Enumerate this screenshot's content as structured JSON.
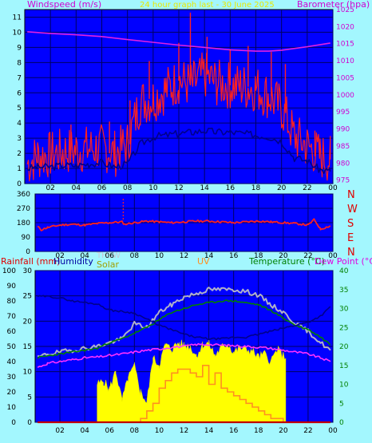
{
  "header": {
    "title": "24 hour graph last - 30 June 2025",
    "windspeed_label": "Windspeed (m/s)",
    "barometer_label": "Barometer (hpa)"
  },
  "x_ticks": [
    "02",
    "04",
    "06",
    "08",
    "10",
    "12",
    "14",
    "16",
    "18",
    "20",
    "22",
    "00"
  ],
  "panels": {
    "wind": {
      "left_ticks": [
        "0",
        "1",
        "2",
        "3",
        "4",
        "5",
        "6",
        "7",
        "8",
        "9",
        "10",
        "11"
      ],
      "right_ticks": [
        "975",
        "980",
        "985",
        "990",
        "995",
        "1000",
        "1005",
        "1010",
        "1015",
        "1020",
        "1025"
      ]
    },
    "direction": {
      "left_ticks": [
        "0",
        "90",
        "180",
        "270",
        "360"
      ],
      "compass": [
        "N",
        "W",
        "S",
        "E",
        "N"
      ]
    },
    "weather": {
      "rain_label": "Rainfall (mm)",
      "humidity_label": "Humidity",
      "thsw_label": "THSW",
      "solar_label": "Solar",
      "uv_label": "UV",
      "temperature_label": "Temperature (°C)",
      "dewpoint_label": "Dew Point (°C)",
      "humidity_ticks": [
        "0",
        "10",
        "20",
        "30",
        "40",
        "50",
        "60",
        "70",
        "80",
        "90",
        "100"
      ],
      "rain_ticks": [
        "0",
        "5",
        "10",
        "15",
        "20",
        "25",
        "30"
      ],
      "temp_ticks": [
        "0",
        "5",
        "10",
        "15",
        "20",
        "25",
        "30",
        "35",
        "40"
      ]
    }
  },
  "chart_data": [
    {
      "type": "line",
      "title": "24 hour graph last - 30 June 2025",
      "x_range_hours": [
        0,
        24
      ],
      "x_tick_labels": [
        "02",
        "04",
        "06",
        "08",
        "10",
        "12",
        "14",
        "16",
        "18",
        "20",
        "22",
        "00"
      ],
      "left_axis": {
        "label": "Windspeed (m/s)",
        "range": [
          0,
          11.5
        ]
      },
      "right_axis": {
        "label": "Barometer (hpa)",
        "range": [
          974,
          1025
        ]
      },
      "series": [
        {
          "name": "Windspeed (m/s)",
          "axis": "left",
          "color": "#ff2020",
          "x": [
            0.2,
            1,
            2,
            3,
            4,
            5,
            6,
            7,
            8,
            9,
            10,
            11,
            12,
            13,
            14,
            15,
            16,
            17,
            18,
            19,
            20,
            21,
            22,
            23,
            23.8
          ],
          "values": [
            1.3,
            1.8,
            1.9,
            2.1,
            2.2,
            2.3,
            2.4,
            2.0,
            2.6,
            5.4,
            5.6,
            6.2,
            6.8,
            6.5,
            7.2,
            6.6,
            6.5,
            6.4,
            6.3,
            5.8,
            5.0,
            3.1,
            2.5,
            1.8,
            1.6
          ]
        },
        {
          "name": "Gust peaks (m/s)",
          "axis": "left",
          "color": "#ff2020",
          "x": [
            3.6,
            6.6,
            8.2,
            9.7,
            12.0,
            12.9,
            14.2,
            16.0,
            17.4,
            19.2,
            20.3,
            22.6
          ],
          "values": [
            3.9,
            4.1,
            5.5,
            8.1,
            9.3,
            11.3,
            9.7,
            8.9,
            9.1,
            8.7,
            7.9,
            3.5
          ]
        },
        {
          "name": "Average windspeed (m/s)",
          "axis": "left",
          "color": "#00008b",
          "x": [
            0.2,
            1,
            2,
            3,
            4,
            5,
            6,
            7,
            8,
            9,
            10,
            11,
            12,
            13,
            14,
            15,
            16,
            17,
            18,
            19,
            20,
            21,
            22,
            23,
            23.8
          ],
          "values": [
            1.0,
            1.1,
            1.1,
            1.2,
            1.2,
            1.3,
            1.4,
            1.1,
            1.3,
            2.6,
            3.1,
            3.2,
            3.3,
            3.4,
            3.5,
            3.4,
            3.4,
            3.3,
            3.2,
            3.1,
            2.8,
            1.7,
            1.5,
            0.9,
            0.8
          ]
        },
        {
          "name": "Barometer (hpa)",
          "axis": "right",
          "color": "#e020e0",
          "x": [
            0.2,
            2,
            4,
            6,
            8,
            10,
            12,
            14,
            16,
            18,
            19,
            20,
            22,
            23.8
          ],
          "values": [
            1018.5,
            1018.0,
            1017.6,
            1017.1,
            1016.2,
            1015.4,
            1014.6,
            1013.9,
            1013.2,
            1012.8,
            1012.8,
            1013.1,
            1014.1,
            1015.2
          ]
        }
      ]
    },
    {
      "type": "line",
      "title": "",
      "x_range_hours": [
        0,
        24
      ],
      "left_axis": {
        "label": "",
        "range": [
          0,
          360
        ]
      },
      "right_axis": {
        "label": "",
        "ticks": [
          "N",
          "W",
          "S",
          "E",
          "N"
        ]
      },
      "series": [
        {
          "name": "Wind direction (degrees)",
          "axis": "left",
          "color": "#ff2020",
          "x": [
            0.2,
            0.5,
            1,
            2,
            3,
            4,
            5,
            6,
            7,
            7.2,
            8,
            9,
            10,
            11,
            12,
            13,
            14,
            15,
            16,
            17,
            18,
            19,
            20,
            21,
            22,
            22.5,
            23,
            23.8
          ],
          "values": [
            155,
            135,
            150,
            165,
            170,
            165,
            175,
            180,
            185,
            170,
            180,
            190,
            185,
            180,
            185,
            190,
            190,
            185,
            180,
            185,
            190,
            185,
            180,
            175,
            165,
            200,
            140,
            160
          ]
        },
        {
          "name": "Direction marker",
          "axis": "left",
          "color": "#ff2020",
          "x": [
            7.1,
            7.1
          ],
          "values": [
            190,
            330
          ]
        }
      ]
    },
    {
      "type": "line",
      "title": "",
      "x_range_hours": [
        0,
        24
      ],
      "axes": {
        "humidity": {
          "label": "Humidity",
          "range": [
            0,
            100
          ]
        },
        "rainfall": {
          "label": "Rainfall (mm)",
          "range": [
            0,
            30
          ]
        },
        "temperature": {
          "label": "Temperature (°C)",
          "range": [
            0,
            40
          ]
        }
      },
      "series": [
        {
          "name": "Humidity",
          "axis": "humidity",
          "color": "#00008b",
          "x": [
            0.2,
            1,
            2,
            3,
            4,
            5,
            6,
            7,
            8,
            9,
            10,
            11,
            12,
            13,
            14,
            15,
            16,
            17,
            18,
            19,
            20,
            21,
            22,
            23,
            23.8
          ],
          "values": [
            83,
            83,
            82,
            80,
            79,
            78,
            74,
            73,
            72,
            68,
            64,
            61,
            58,
            56,
            55,
            55,
            56,
            56,
            58,
            60,
            62,
            64,
            66,
            70,
            76
          ]
        },
        {
          "name": "THSW",
          "axis": "temperature",
          "color": "#b0b0c8",
          "x": [
            0.2,
            1,
            2,
            3,
            4,
            5,
            6,
            7,
            8,
            9,
            10,
            11,
            12,
            13,
            14,
            15,
            16,
            17,
            18,
            19,
            20,
            21,
            22,
            23,
            23.8
          ],
          "values": [
            17,
            18,
            18.5,
            19,
            19.5,
            20,
            21,
            22,
            26,
            25,
            29,
            31,
            33,
            34,
            35,
            35,
            35,
            34.5,
            33.5,
            31,
            29,
            26,
            24,
            21,
            19
          ]
        },
        {
          "name": "Temperature (°C)",
          "axis": "temperature",
          "color": "#008000",
          "x": [
            0.2,
            1,
            2,
            3,
            4,
            5,
            6,
            7,
            8,
            9,
            10,
            11,
            12,
            13,
            14,
            15,
            16,
            17,
            18,
            19,
            20,
            21,
            22,
            23,
            23.8
          ],
          "values": [
            17,
            17.5,
            18,
            18.5,
            19,
            19.5,
            21,
            22,
            23.5,
            25,
            27,
            29,
            30,
            31,
            31.5,
            32,
            32,
            31.5,
            31,
            29.5,
            27.5,
            25.5,
            24.5,
            22.5,
            20.5
          ]
        },
        {
          "name": "Dew Point (°C)",
          "axis": "temperature",
          "color": "#ff30ff",
          "x": [
            0.2,
            1,
            2,
            3,
            4,
            5,
            6,
            7,
            8,
            9,
            10,
            11,
            12,
            13,
            14,
            15,
            16,
            17,
            18,
            19,
            20,
            21,
            22,
            23,
            23.8
          ],
          "values": [
            14.5,
            15.5,
            16,
            16.5,
            17,
            17.2,
            17.6,
            18,
            18.5,
            19,
            19.3,
            19.8,
            20,
            20.5,
            20.5,
            20.3,
            20.2,
            20,
            19.8,
            19.5,
            19,
            18.5,
            18,
            17,
            16
          ]
        },
        {
          "name": "Solar",
          "axis": "humidity",
          "color": "#ffff00",
          "x": [
            5.0,
            5.5,
            6,
            6.5,
            7,
            7.5,
            8,
            8.5,
            9,
            9.5,
            10,
            10.5,
            11,
            11.5,
            12,
            12.5,
            13,
            13.5,
            14,
            14.5,
            15,
            15.5,
            16,
            16.5,
            17,
            17.5,
            18,
            18.5,
            19,
            19.5,
            20,
            20.2
          ],
          "values": [
            25,
            27,
            22,
            34,
            14,
            29,
            37,
            20,
            13,
            42,
            38,
            51,
            48,
            52,
            51,
            50,
            44,
            51,
            52,
            44,
            49,
            52,
            46,
            49,
            48,
            47,
            43,
            45,
            40,
            48,
            44,
            42
          ]
        },
        {
          "name": "UV",
          "axis": "temperature",
          "color": "#ff9020",
          "x": [
            8,
            8.5,
            9,
            9.5,
            10,
            10.5,
            11,
            11.5,
            12,
            12.5,
            13,
            13.5,
            14,
            14.5,
            15,
            15.5,
            16,
            16.5,
            17,
            17.5,
            18,
            18.5,
            19,
            19.5,
            20
          ],
          "values": [
            0,
            1,
            3,
            5,
            9,
            11,
            13,
            14,
            14,
            13,
            12,
            15,
            10,
            13,
            9,
            8,
            7,
            6,
            5,
            4,
            3,
            2,
            1,
            1,
            0
          ]
        },
        {
          "name": "Rainfall (mm)",
          "axis": "rainfall",
          "color": "#c00000",
          "x": [
            0.2,
            23.8
          ],
          "values": [
            0,
            0
          ]
        }
      ]
    }
  ]
}
